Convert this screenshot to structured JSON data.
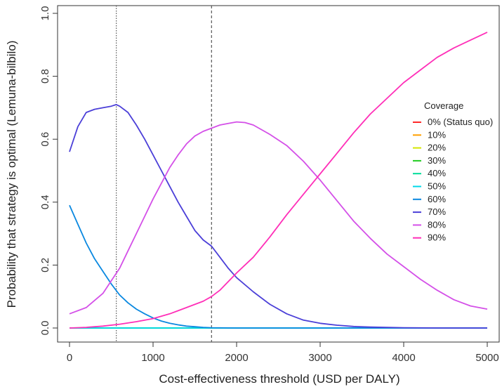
{
  "chart_data": {
    "type": "line",
    "title": "",
    "xlabel": "Cost-effectiveness threshold (USD per DALY)",
    "ylabel": "Probability that strategy is optimal (Lemuna-bilbilo)",
    "xlim": [
      0,
      5000
    ],
    "ylim": [
      0,
      1.0
    ],
    "x_ticks": [
      "0",
      "1000",
      "2000",
      "3000",
      "4000",
      "5000"
    ],
    "y_ticks": [
      "0.0",
      "0.2",
      "0.4",
      "0.6",
      "0.8",
      "1.0"
    ],
    "grid": false,
    "reference_lines": [
      {
        "x": 560,
        "style": "dotted"
      },
      {
        "x": 1700,
        "style": "dashed"
      }
    ],
    "legend": {
      "title": "Coverage",
      "placement": "right"
    },
    "series": [
      {
        "name": "0% (Status quo)",
        "color": "#ff2a2a",
        "x": [
          0,
          5000
        ],
        "y": [
          0.0,
          0.0
        ]
      },
      {
        "name": "10%",
        "color": "#ffa000",
        "x": [
          0,
          5000
        ],
        "y": [
          0.0,
          0.0
        ]
      },
      {
        "name": "20%",
        "color": "#d4e600",
        "x": [
          0,
          5000
        ],
        "y": [
          0.0,
          0.0
        ]
      },
      {
        "name": "30%",
        "color": "#22cc22",
        "x": [
          0,
          5000
        ],
        "y": [
          0.0,
          0.0
        ]
      },
      {
        "name": "40%",
        "color": "#00dd99",
        "x": [
          0,
          5000
        ],
        "y": [
          0.0,
          0.0
        ]
      },
      {
        "name": "50%",
        "color": "#00d8e8",
        "x": [
          0,
          5000
        ],
        "y": [
          0.0,
          0.0
        ]
      },
      {
        "name": "60%",
        "color": "#0a88e0",
        "x": [
          0,
          100,
          200,
          300,
          400,
          500,
          600,
          700,
          800,
          900,
          1000,
          1100,
          1200,
          1300,
          1400,
          1500,
          1600,
          1700,
          2000,
          3000,
          4000,
          5000
        ],
        "y": [
          0.39,
          0.33,
          0.27,
          0.22,
          0.18,
          0.14,
          0.105,
          0.08,
          0.06,
          0.045,
          0.032,
          0.022,
          0.015,
          0.01,
          0.006,
          0.004,
          0.002,
          0.001,
          0.0,
          0.0,
          0.0,
          0.0
        ]
      },
      {
        "name": "70%",
        "color": "#4b3fd8",
        "x": [
          0,
          100,
          200,
          300,
          400,
          500,
          560,
          600,
          700,
          800,
          900,
          1000,
          1100,
          1200,
          1300,
          1400,
          1500,
          1600,
          1700,
          1800,
          1900,
          2000,
          2200,
          2400,
          2600,
          2800,
          3000,
          3200,
          3400,
          3600,
          3800,
          4000,
          4500,
          5000
        ],
        "y": [
          0.56,
          0.64,
          0.685,
          0.695,
          0.7,
          0.705,
          0.71,
          0.705,
          0.685,
          0.645,
          0.6,
          0.55,
          0.5,
          0.45,
          0.4,
          0.355,
          0.31,
          0.28,
          0.26,
          0.225,
          0.19,
          0.16,
          0.115,
          0.075,
          0.045,
          0.025,
          0.015,
          0.009,
          0.005,
          0.003,
          0.002,
          0.001,
          0.0,
          0.0
        ]
      },
      {
        "name": "80%",
        "color": "#d450e8",
        "x": [
          0,
          200,
          400,
          500,
          600,
          700,
          800,
          900,
          1000,
          1100,
          1200,
          1300,
          1400,
          1500,
          1600,
          1700,
          1800,
          1900,
          2000,
          2100,
          2200,
          2400,
          2600,
          2800,
          3000,
          3200,
          3400,
          3600,
          3800,
          4000,
          4200,
          4400,
          4600,
          4800,
          5000
        ],
        "y": [
          0.045,
          0.065,
          0.11,
          0.15,
          0.19,
          0.245,
          0.3,
          0.355,
          0.41,
          0.46,
          0.51,
          0.55,
          0.585,
          0.61,
          0.625,
          0.635,
          0.645,
          0.65,
          0.655,
          0.653,
          0.645,
          0.615,
          0.58,
          0.53,
          0.47,
          0.405,
          0.34,
          0.285,
          0.235,
          0.195,
          0.155,
          0.12,
          0.09,
          0.07,
          0.06
        ]
      },
      {
        "name": "90%",
        "color": "#ff2fb8",
        "x": [
          0,
          200,
          400,
          600,
          800,
          1000,
          1200,
          1400,
          1600,
          1700,
          1800,
          2000,
          2200,
          2400,
          2600,
          2800,
          3000,
          3200,
          3400,
          3600,
          3800,
          4000,
          4200,
          4400,
          4600,
          4800,
          5000
        ],
        "y": [
          0.0,
          0.002,
          0.006,
          0.012,
          0.02,
          0.03,
          0.045,
          0.065,
          0.085,
          0.1,
          0.12,
          0.175,
          0.225,
          0.29,
          0.36,
          0.425,
          0.49,
          0.555,
          0.62,
          0.68,
          0.73,
          0.78,
          0.82,
          0.86,
          0.89,
          0.915,
          0.94
        ]
      }
    ]
  }
}
